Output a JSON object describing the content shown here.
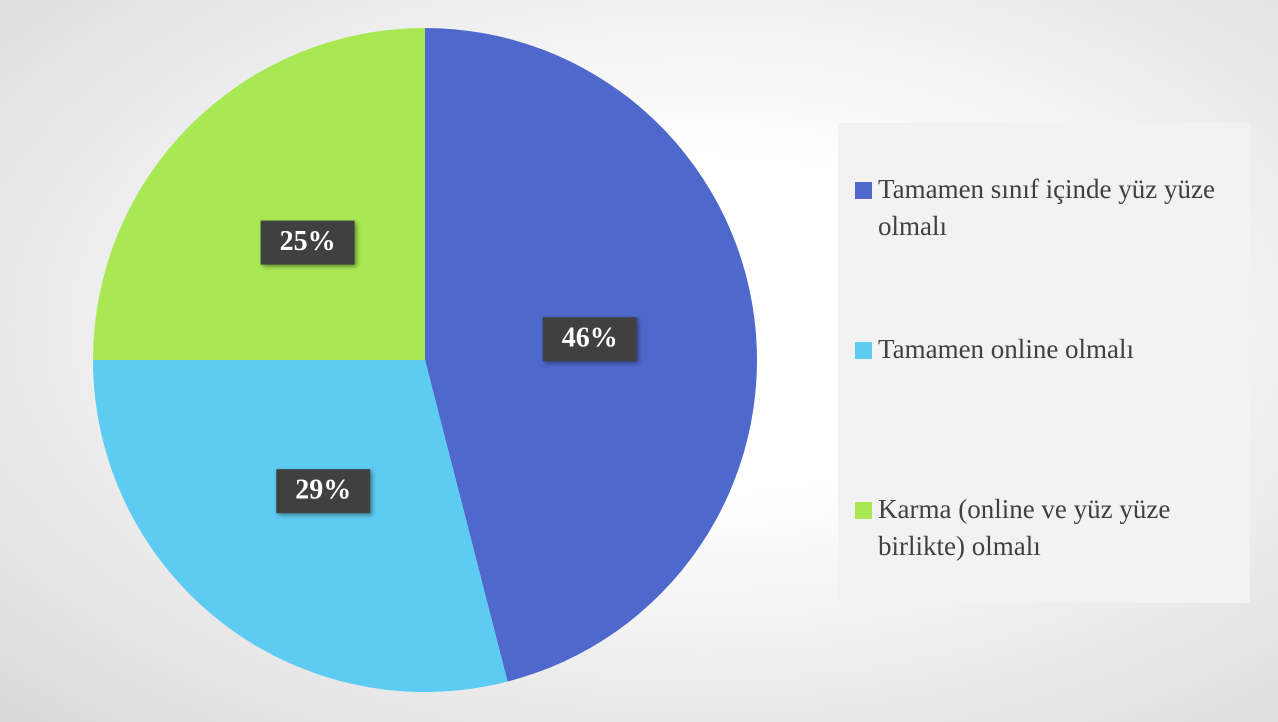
{
  "chart_data": {
    "type": "pie",
    "categories": [
      "Tamamen sınıf içinde yüz yüze olmalı",
      "Tamamen online olmalı",
      "Karma (online ve yüz yüze birlikte) olmalı"
    ],
    "values": [
      46,
      29,
      25
    ],
    "value_labels": [
      "46%",
      "29%",
      "25%"
    ],
    "colors": [
      "#4f68cb",
      "#5ecbf2",
      "#a8e852"
    ],
    "legend": "right"
  }
}
